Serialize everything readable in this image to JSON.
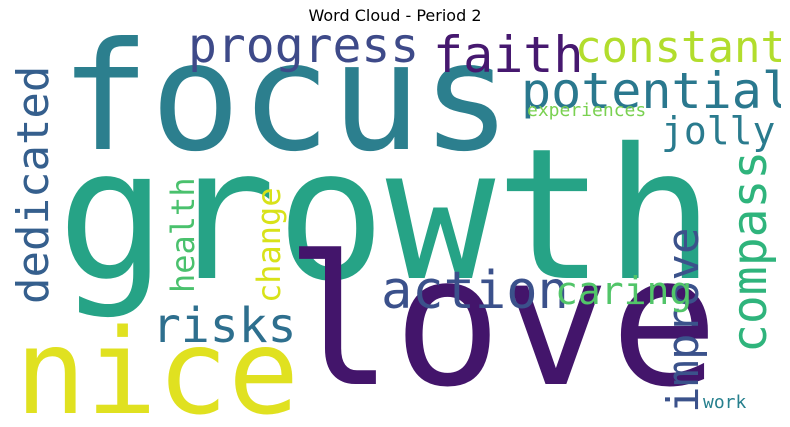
{
  "title": "Word Cloud - Period 2",
  "words": [
    {
      "text": "growth",
      "color": "#26a386",
      "orientation": "horizontal"
    },
    {
      "text": "focus",
      "color": "#2c7f8e",
      "orientation": "horizontal"
    },
    {
      "text": "love",
      "color": "#43156b",
      "orientation": "horizontal"
    },
    {
      "text": "nice",
      "color": "#e0e120",
      "orientation": "horizontal"
    },
    {
      "text": "progress",
      "color": "#3e4a89",
      "orientation": "horizontal"
    },
    {
      "text": "faith",
      "color": "#46186f",
      "orientation": "horizontal"
    },
    {
      "text": "constant",
      "color": "#b2dd2d",
      "orientation": "horizontal"
    },
    {
      "text": "potential",
      "color": "#2a788e",
      "orientation": "horizontal"
    },
    {
      "text": "experiences",
      "color": "#7ad151",
      "orientation": "horizontal"
    },
    {
      "text": "jolly",
      "color": "#2a7b8e",
      "orientation": "horizontal"
    },
    {
      "text": "dedicated",
      "color": "#355f8d",
      "orientation": "vertical"
    },
    {
      "text": "health",
      "color": "#4ac16d",
      "orientation": "vertical"
    },
    {
      "text": "change",
      "color": "#d8e219",
      "orientation": "vertical"
    },
    {
      "text": "improve",
      "color": "#3b528b",
      "orientation": "vertical"
    },
    {
      "text": "compass",
      "color": "#2fb47c",
      "orientation": "vertical"
    },
    {
      "text": "action",
      "color": "#3b518b",
      "orientation": "horizontal"
    },
    {
      "text": "caring",
      "color": "#52c569",
      "orientation": "horizontal"
    },
    {
      "text": "risks",
      "color": "#2e6f8e",
      "orientation": "horizontal"
    },
    {
      "text": "work",
      "color": "#27808e",
      "orientation": "horizontal"
    }
  ]
}
